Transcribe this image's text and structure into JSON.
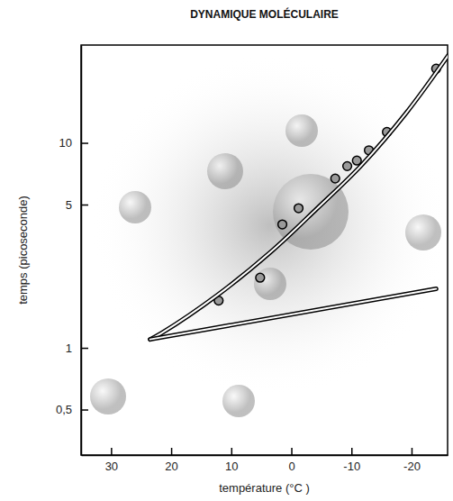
{
  "chart_data": {
    "type": "scatter",
    "title": "DYNAMIQUE MOLÉCULAIRE",
    "x_label": "température (°C )",
    "y_label": "temps (picoseconde)",
    "xlim": [
      35,
      -26
    ],
    "ylim": [
      0.3,
      30
    ],
    "xticks": [
      30,
      20,
      10,
      0,
      -10,
      -20
    ],
    "yticks": [
      {
        "value": 0.5,
        "label": "0,5"
      },
      1,
      5,
      10
    ],
    "log": "y",
    "grid": false,
    "series": [
      {
        "type": "scatter",
        "marker": "circle",
        "color": "#9a9a9a",
        "x": [
          12.1,
          5.2,
          1.5,
          -1.2,
          -7.3,
          -9.3,
          -10.9,
          -12.9,
          -15.9,
          -24.1
        ],
        "values": [
          1.7,
          2.2,
          4.0,
          4.8,
          6.7,
          7.7,
          8.2,
          9.2,
          11.3,
          23
        ]
      },
      {
        "type": "line",
        "color": "#ffffff",
        "line_style": "outlined",
        "x": [
          23.5,
          21.6,
          12.3,
          3.3,
          -4.2,
          -11.7,
          -19.2,
          -26.6
        ],
        "values": [
          1.1,
          1.18,
          1.81,
          2.96,
          4.76,
          7.8,
          14.1,
          28
        ]
      },
      {
        "type": "line",
        "color": "#ffffff",
        "line_style": "outlined",
        "x": [
          23.5,
          -24.1
        ],
        "values": [
          1.1,
          1.94
        ]
      }
    ]
  }
}
